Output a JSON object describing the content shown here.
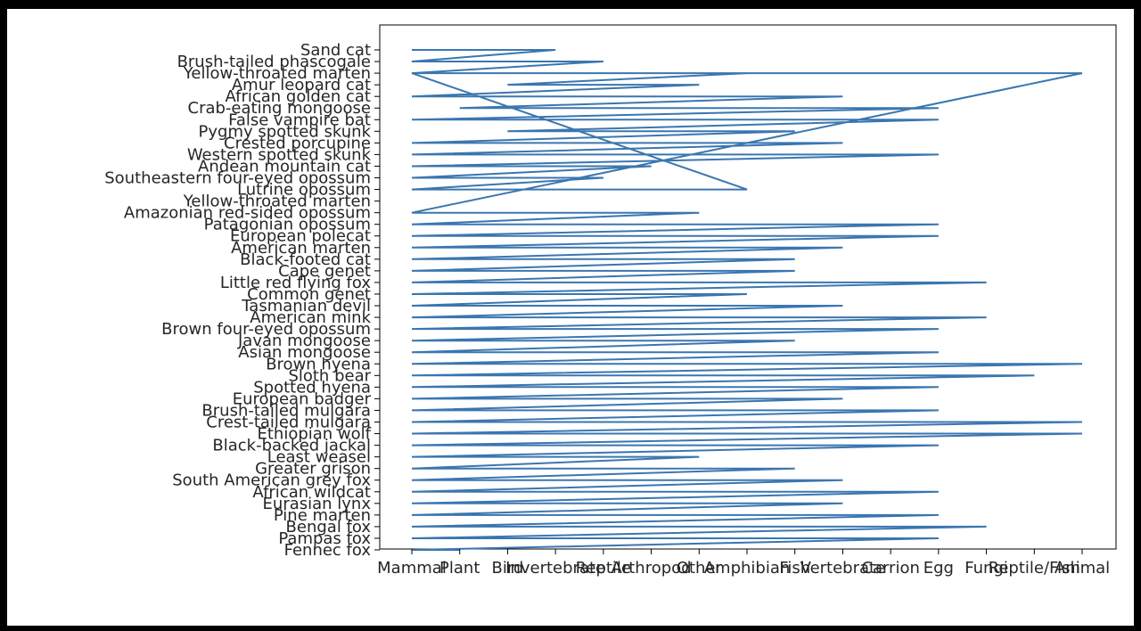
{
  "chart_data": {
    "type": "line",
    "title": "",
    "xlabel": "",
    "ylabel": "",
    "grid": false,
    "line_color": "#3a76b0",
    "x_categories": [
      "Mammal",
      "Plant",
      "Bird",
      "Invertebrate",
      "Reptile",
      "Arthropod",
      "Other",
      "Amphibian",
      "Invertebrate",
      "Vertebrate",
      "Egg",
      "Fungi",
      "Reptile",
      "Animal",
      "Fish"
    ],
    "x_display_order": [
      "Mammal",
      "Plant",
      "Bird",
      "Invertebrate",
      "Reptile",
      "Arthropod",
      "Other",
      "Amphibian",
      "Fish",
      "Vertebrate",
      "Carrion",
      "Egg",
      "Fungi",
      "Reptile/Fish",
      "Animal"
    ],
    "y_tick_labels_visible": [
      "Sand cat",
      "Brush-tailed phascogale",
      "Yellow-throated marten",
      "Amur leopard cat",
      "African golden cat",
      "Crab-eating mongoose",
      "False vampire bat",
      "Pygmy spotted skunk",
      "Crested porcupine",
      "Western spotted skunk",
      "Andean mountain cat",
      "Southeastern four-eyed opossum",
      "Lutrine opossum",
      "Yellow-throated marten",
      "Amazonian red-sided opossum",
      "Patagonian opossum",
      "European polecat",
      "American marten",
      "Black-footed cat",
      "Cape genet",
      "Little red flying fox",
      "Common genet",
      "Tasmanian devil",
      "American mink",
      "Brown four-eyed opossum",
      "Javan mongoose",
      "Asian mongoose",
      "Brown hyena",
      "Sloth bear",
      "Spotted hyena",
      "European badger",
      "Brush-tailed mulgara",
      "Crest-tailed mulgara",
      "Ethiopian wolf",
      "Black-backed jackal",
      "Least weasel",
      "Greater grison",
      "South American grey fox",
      "African wildcat",
      "Eurasian lynx",
      "Pine marten",
      "Bengal fox",
      "Pampas fox",
      "Fennec fox"
    ],
    "series": [
      {
        "points": [
          [
            "Sand cat",
            "Mammal"
          ],
          [
            "Sand cat",
            "Invertebrate"
          ],
          [
            "Brush-tailed phascogale",
            "Mammal"
          ],
          [
            "Brush-tailed phascogale",
            "Reptile"
          ],
          [
            "Yellow-throated marten",
            "Mammal"
          ],
          [
            "Yellow-throated marten",
            "Amphibian"
          ],
          [
            "Amur leopard cat",
            "Bird"
          ],
          [
            "Amur leopard cat",
            "Other"
          ],
          [
            "African golden cat",
            "Mammal"
          ],
          [
            "African golden cat",
            "Vertebrate"
          ],
          [
            "Crab-eating mongoose",
            "Plant"
          ],
          [
            "Crab-eating mongoose",
            "Egg"
          ],
          [
            "False vampire bat",
            "Mammal"
          ],
          [
            "False vampire bat",
            "Egg"
          ],
          [
            "Pygmy spotted skunk",
            "Bird"
          ],
          [
            "Pygmy spotted skunk",
            "Fish"
          ],
          [
            "Crested porcupine",
            "Mammal"
          ],
          [
            "Crested porcupine",
            "Vertebrate"
          ],
          [
            "Western spotted skunk",
            "Mammal"
          ],
          [
            "Western spotted skunk",
            "Egg"
          ],
          [
            "Andean mountain cat",
            "Mammal"
          ],
          [
            "Andean mountain cat",
            "Arthropod"
          ],
          [
            "Southeastern four-eyed opossum",
            "Mammal"
          ],
          [
            "Southeastern four-eyed opossum",
            "Reptile"
          ],
          [
            "Lutrine opossum",
            "Mammal"
          ],
          [
            "Lutrine opossum",
            "Amphibian"
          ],
          [
            "Yellow-throated marten",
            "Mammal"
          ],
          [
            "Yellow-throated marten",
            "Animal"
          ],
          [
            "Amazonian red-sided opossum",
            "Mammal"
          ],
          [
            "Amazonian red-sided opossum",
            "Other"
          ],
          [
            "Patagonian opossum",
            "Mammal"
          ],
          [
            "Patagonian opossum",
            "Egg"
          ],
          [
            "European polecat",
            "Mammal"
          ],
          [
            "European polecat",
            "Egg"
          ],
          [
            "American marten",
            "Mammal"
          ],
          [
            "American marten",
            "Vertebrate"
          ],
          [
            "Black-footed cat",
            "Mammal"
          ],
          [
            "Black-footed cat",
            "Fish"
          ],
          [
            "Cape genet",
            "Mammal"
          ],
          [
            "Cape genet",
            "Fish"
          ],
          [
            "Little red flying fox",
            "Mammal"
          ],
          [
            "Little red flying fox",
            "Fungi"
          ],
          [
            "Common genet",
            "Mammal"
          ],
          [
            "Common genet",
            "Amphibian"
          ],
          [
            "Tasmanian devil",
            "Mammal"
          ],
          [
            "Tasmanian devil",
            "Vertebrate"
          ],
          [
            "American mink",
            "Mammal"
          ],
          [
            "American mink",
            "Fungi"
          ],
          [
            "Brown four-eyed opossum",
            "Mammal"
          ],
          [
            "Brown four-eyed opossum",
            "Egg"
          ],
          [
            "Javan mongoose",
            "Mammal"
          ],
          [
            "Javan mongoose",
            "Fish"
          ],
          [
            "Asian mongoose",
            "Mammal"
          ],
          [
            "Asian mongoose",
            "Egg"
          ],
          [
            "Brown hyena",
            "Mammal"
          ],
          [
            "Brown hyena",
            "Animal"
          ],
          [
            "Sloth bear",
            "Mammal"
          ],
          [
            "Sloth bear",
            "Reptile/Fish"
          ],
          [
            "Spotted hyena",
            "Mammal"
          ],
          [
            "Spotted hyena",
            "Egg"
          ],
          [
            "European badger",
            "Mammal"
          ],
          [
            "European badger",
            "Vertebrate"
          ],
          [
            "Brush-tailed mulgara",
            "Mammal"
          ],
          [
            "Brush-tailed mulgara",
            "Egg"
          ],
          [
            "Crest-tailed mulgara",
            "Mammal"
          ],
          [
            "Crest-tailed mulgara",
            "Animal"
          ],
          [
            "Ethiopian wolf",
            "Mammal"
          ],
          [
            "Ethiopian wolf",
            "Animal"
          ],
          [
            "Black-backed jackal",
            "Mammal"
          ],
          [
            "Black-backed jackal",
            "Egg"
          ],
          [
            "Least weasel",
            "Mammal"
          ],
          [
            "Least weasel",
            "Other"
          ],
          [
            "Greater grison",
            "Mammal"
          ],
          [
            "Greater grison",
            "Fish"
          ],
          [
            "South American grey fox",
            "Mammal"
          ],
          [
            "South American grey fox",
            "Vertebrate"
          ],
          [
            "African wildcat",
            "Mammal"
          ],
          [
            "African wildcat",
            "Egg"
          ],
          [
            "Eurasian lynx",
            "Mammal"
          ],
          [
            "Eurasian lynx",
            "Vertebrate"
          ],
          [
            "Pine marten",
            "Mammal"
          ],
          [
            "Pine marten",
            "Egg"
          ],
          [
            "Bengal fox",
            "Mammal"
          ],
          [
            "Bengal fox",
            "Fungi"
          ],
          [
            "Pampas fox",
            "Mammal"
          ],
          [
            "Pampas fox",
            "Egg"
          ],
          [
            "Fennec fox",
            "Mammal"
          ],
          [
            "Fennec fox",
            "Plant"
          ]
        ]
      }
    ]
  }
}
